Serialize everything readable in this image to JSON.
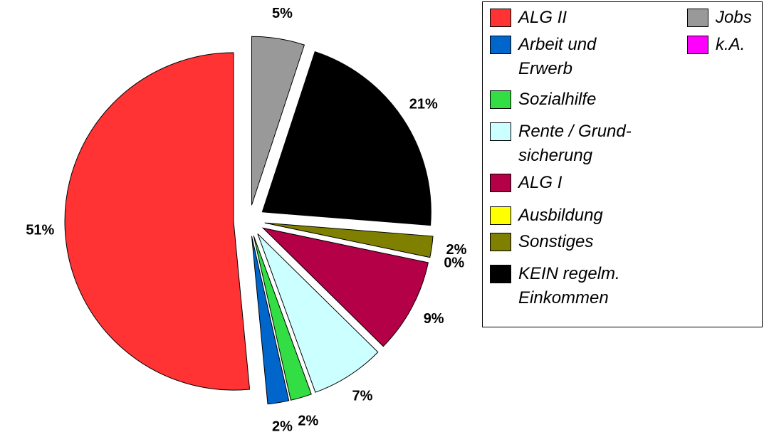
{
  "chart_data": {
    "type": "pie",
    "categories": [
      "ALG II",
      "Arbeit und Erwerb",
      "Sozialhilfe",
      "Rente / Grund­sicherung",
      "ALG I",
      "Ausbildung",
      "Sonstiges",
      "KEIN regelm. Einkommen",
      "Jobs",
      "k.A."
    ],
    "values": [
      51,
      2,
      2,
      7,
      9,
      0,
      2,
      21,
      5,
      0
    ],
    "value_labels": [
      "51%",
      "2%",
      "2%",
      "7%",
      "9%",
      "0%",
      "2%",
      "21%",
      "5%",
      null
    ],
    "colors": [
      "#ff3333",
      "#0066cc",
      "#33dd44",
      "#ccffff",
      "#b30047",
      "#ffff00",
      "#808000",
      "#000000",
      "#999999",
      "#ff00ff"
    ],
    "start_angle": "top",
    "direction": "counterclockwise",
    "exploded": true,
    "legend": "right"
  }
}
